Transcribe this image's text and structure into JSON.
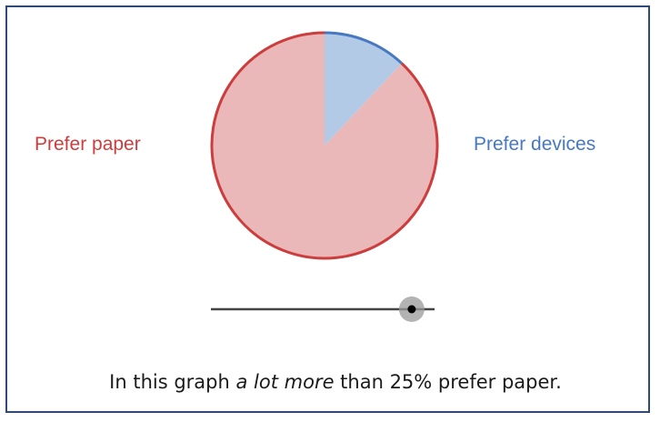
{
  "colors": {
    "paper_fill": "#ebb8b9",
    "paper_stroke": "#cc3d3d",
    "devices_fill": "#b3cae6",
    "devices_stroke": "#4778c2",
    "slider_track": "#444444",
    "slider_halo": "#9a9a9a",
    "slider_knob": "#000000",
    "frame_border": "#2f4a78"
  },
  "chart_data": {
    "type": "pie",
    "title": "",
    "slices": [
      {
        "label": "Prefer paper",
        "value": 88
      },
      {
        "label": "Prefer devices",
        "value": 12
      }
    ],
    "start_angle_deg": 0,
    "legend": "left-right labels"
  },
  "slider": {
    "value": 0.88,
    "min": 0,
    "max": 1
  },
  "caption": {
    "prefix": "In this graph ",
    "emphasis": "a lot more",
    "suffix": " than 25% prefer paper."
  }
}
